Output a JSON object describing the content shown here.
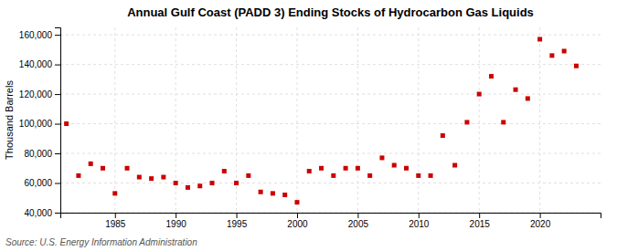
{
  "chart_data": {
    "type": "scatter",
    "title": "Annual Gulf Coast (PADD 3) Ending Stocks of Hydrocarbon Gas Liquids",
    "ylabel": "Thousand Barrels",
    "source": "Source: U.S. Energy Information Administration",
    "x": [
      1981,
      1982,
      1983,
      1984,
      1985,
      1986,
      1987,
      1988,
      1989,
      1990,
      1991,
      1992,
      1993,
      1994,
      1995,
      1996,
      1997,
      1998,
      1999,
      2000,
      2001,
      2002,
      2003,
      2004,
      2005,
      2006,
      2007,
      2008,
      2009,
      2010,
      2011,
      2012,
      2013,
      2014,
      2015,
      2016,
      2017,
      2018,
      2019,
      2020,
      2021,
      2022,
      2023
    ],
    "values": [
      100000,
      65000,
      73000,
      70000,
      53000,
      70000,
      64000,
      63000,
      64000,
      60000,
      57000,
      58000,
      60000,
      68000,
      60000,
      65000,
      54000,
      53000,
      52000,
      47000,
      68000,
      70000,
      65000,
      70000,
      70000,
      65000,
      77000,
      72000,
      70000,
      65000,
      65000,
      92000,
      72000,
      101000,
      120000,
      132000,
      101000,
      123000,
      117000,
      157000,
      146000,
      149000,
      139000
    ],
    "color": "#cc0000",
    "marker": "square",
    "xlim": [
      1980.5,
      2025
    ],
    "xticks": [
      1985,
      1990,
      1995,
      2000,
      2005,
      2010,
      2015,
      2020
    ],
    "ylim": [
      40000,
      165000
    ],
    "yticks": [
      {
        "value": 40000,
        "label": "40,000"
      },
      {
        "value": 60000,
        "label": "60,000"
      },
      {
        "value": 80000,
        "label": "80,000"
      },
      {
        "value": 100000,
        "label": "100,000"
      },
      {
        "value": 120000,
        "label": "120,000"
      },
      {
        "value": 140000,
        "label": "140,000"
      },
      {
        "value": 160000,
        "label": "160,000"
      }
    ],
    "grid": true
  }
}
